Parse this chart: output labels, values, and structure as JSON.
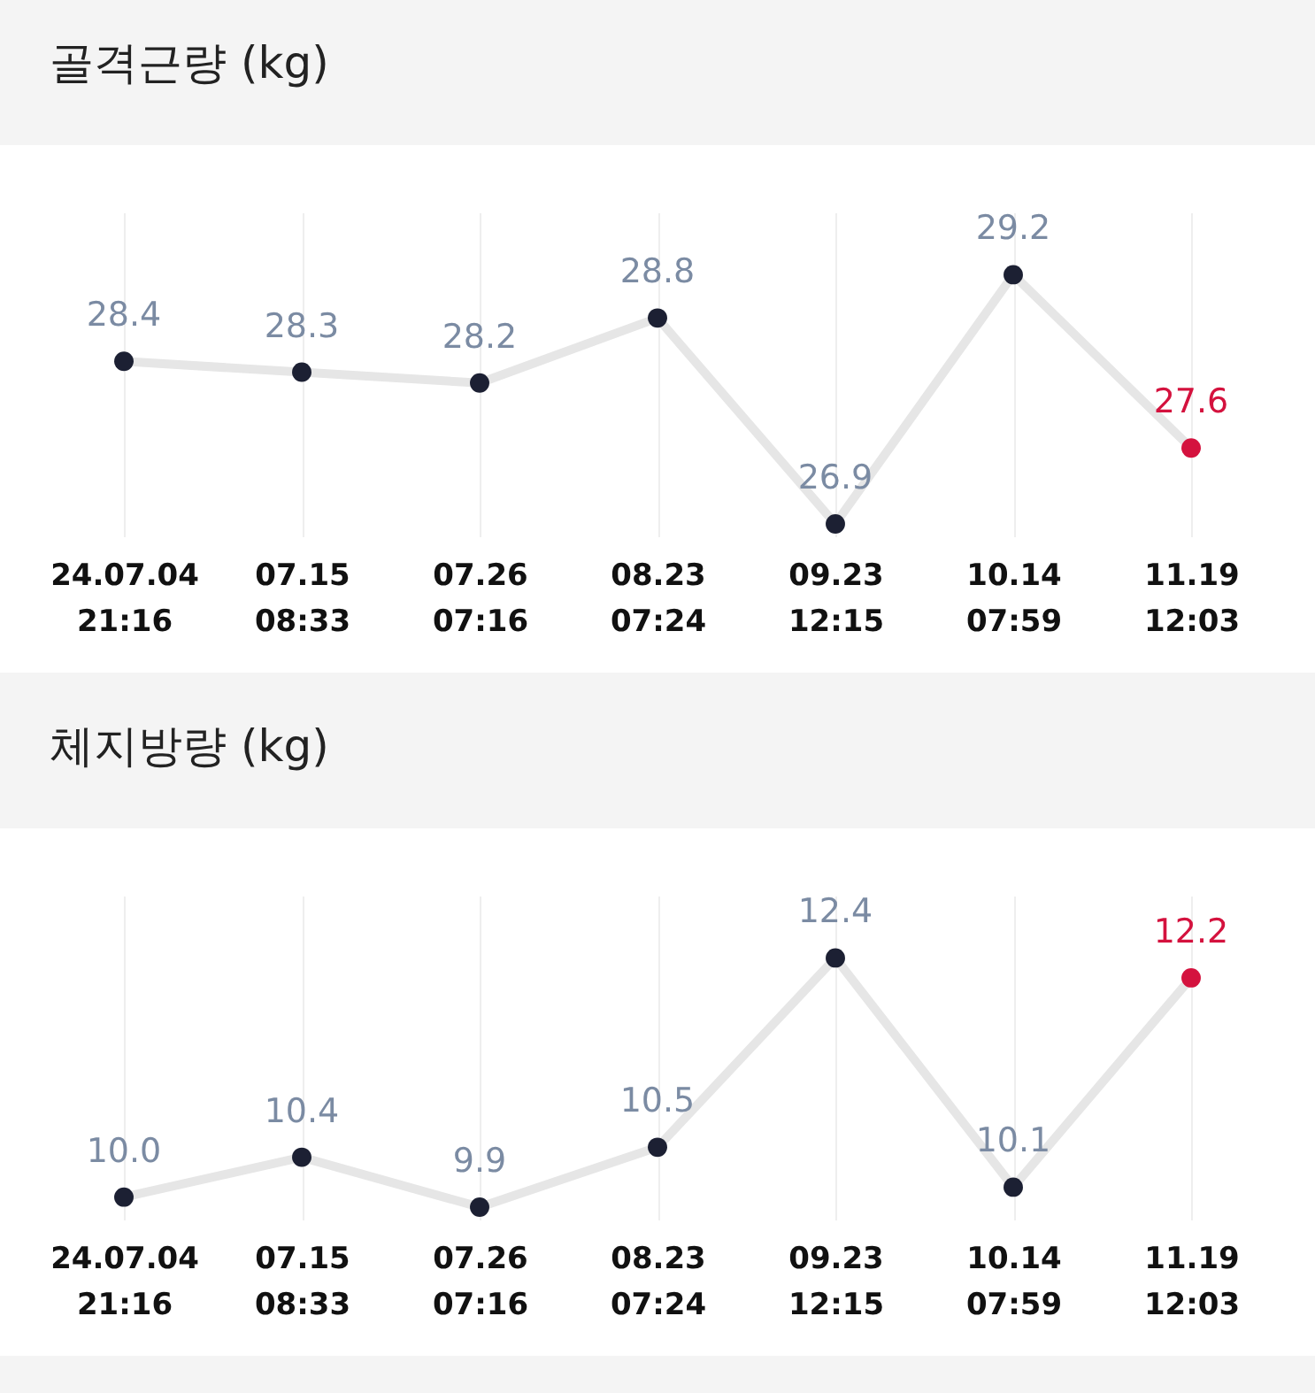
{
  "chart_data": [
    {
      "type": "line",
      "title": "골격근량 (kg)",
      "categories": [
        "24.07.04\n21:16",
        "07.15\n08:33",
        "07.26\n07:16",
        "08.23\n07:24",
        "09.23\n12:15",
        "10.14\n07:59",
        "11.19\n12:03"
      ],
      "values": [
        28.4,
        28.3,
        28.2,
        28.8,
        26.9,
        29.2,
        27.6
      ],
      "color": "#e6e6e6",
      "colors": [
        "#1c2033",
        "#1c2033",
        "#1c2033",
        "#1c2033",
        "#1c2033",
        "#1c2033",
        "#d4123e"
      ],
      "marker": "circle",
      "data_labels": true,
      "grid": "x"
    },
    {
      "type": "line",
      "title": "체지방량 (kg)",
      "categories": [
        "24.07.04\n21:16",
        "07.15\n08:33",
        "07.26\n07:16",
        "08.23\n07:24",
        "09.23\n12:15",
        "10.14\n07:59",
        "11.19\n12:03"
      ],
      "values": [
        10.0,
        10.4,
        9.9,
        10.5,
        12.4,
        10.1,
        12.2
      ],
      "value_labels": [
        "10.0",
        "10.4",
        "9.9",
        "10.5",
        "12.4",
        "10.1",
        "12.2"
      ],
      "color": "#e6e6e6",
      "colors": [
        "#1c2033",
        "#1c2033",
        "#1c2033",
        "#1c2033",
        "#1c2033",
        "#1c2033",
        "#d4123e"
      ],
      "marker": "circle",
      "grid": "x"
    }
  ]
}
